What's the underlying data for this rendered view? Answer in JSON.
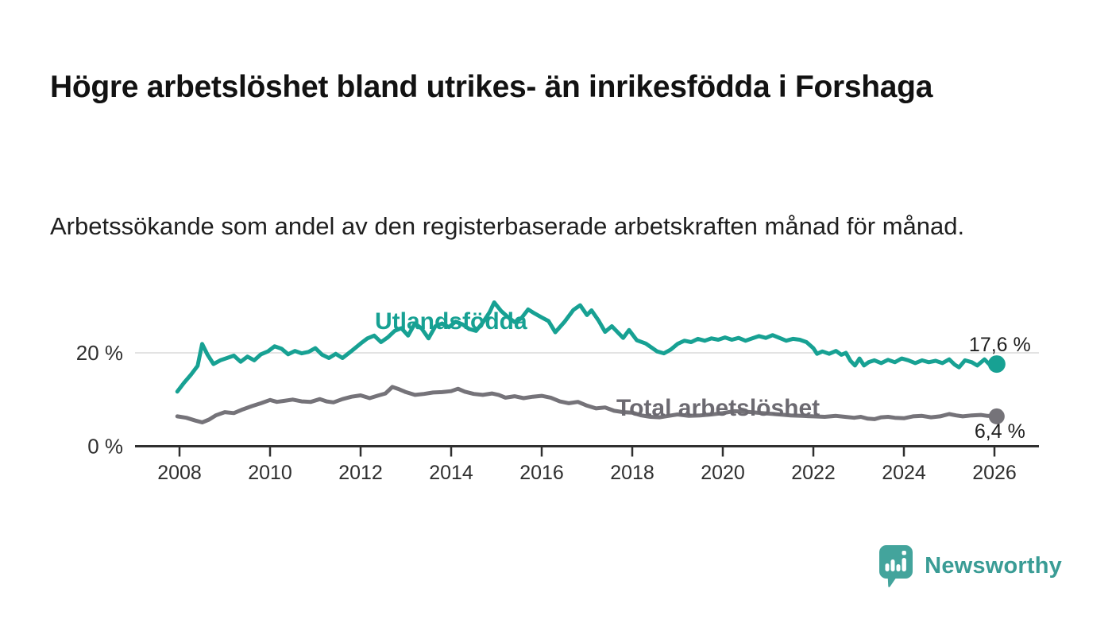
{
  "header": {
    "title": "Högre arbetslöshet bland utrikes- än inrikesfödda i Forshaga",
    "subtitle": "Arbetssökande som andel av den registerbaserade arbetskraften månad för månad."
  },
  "chart_data": {
    "type": "line",
    "title": "Högre arbetslöshet bland utrikes- än inrikesfödda i Forshaga",
    "xlabel": "",
    "ylabel": "",
    "x_ticks": [
      2008,
      2010,
      2012,
      2014,
      2016,
      2018,
      2020,
      2022,
      2024,
      2026
    ],
    "y_ticks": [
      {
        "value": 20,
        "label": "20 %",
        "gridline": true
      },
      {
        "value": 0,
        "label": "0 %",
        "gridline": false
      }
    ],
    "x_range": [
      2007.9,
      2027.0
    ],
    "y_range": [
      0,
      34
    ],
    "legend_position": "inline",
    "grid": "single-horizontal-at-20",
    "axis_color": "#2f2f2f",
    "grid_color": "#dadada",
    "tick_label_color": "#2f2f2f",
    "end_label_color": "#1f1f1f",
    "series": [
      {
        "name": "Utlandsfödda",
        "color": "#17A193",
        "label_color": "#17A193",
        "end_label": "17,6 %",
        "end_value": 17.6,
        "points": [
          [
            2007.95,
            11.7
          ],
          [
            2008.1,
            13.6
          ],
          [
            2008.25,
            15.3
          ],
          [
            2008.4,
            17.2
          ],
          [
            2008.5,
            21.9
          ],
          [
            2008.62,
            19.6
          ],
          [
            2008.75,
            17.6
          ],
          [
            2008.9,
            18.4
          ],
          [
            2009.05,
            18.9
          ],
          [
            2009.2,
            19.4
          ],
          [
            2009.35,
            18.1
          ],
          [
            2009.5,
            19.2
          ],
          [
            2009.65,
            18.4
          ],
          [
            2009.8,
            19.7
          ],
          [
            2009.95,
            20.3
          ],
          [
            2010.1,
            21.4
          ],
          [
            2010.25,
            20.9
          ],
          [
            2010.4,
            19.7
          ],
          [
            2010.55,
            20.4
          ],
          [
            2010.7,
            19.9
          ],
          [
            2010.85,
            20.2
          ],
          [
            2011.0,
            21.0
          ],
          [
            2011.15,
            19.6
          ],
          [
            2011.3,
            18.9
          ],
          [
            2011.45,
            19.8
          ],
          [
            2011.6,
            18.9
          ],
          [
            2011.8,
            20.4
          ],
          [
            2012.0,
            22.0
          ],
          [
            2012.15,
            23.1
          ],
          [
            2012.3,
            23.7
          ],
          [
            2012.45,
            22.3
          ],
          [
            2012.6,
            23.3
          ],
          [
            2012.75,
            24.7
          ],
          [
            2012.9,
            25.3
          ],
          [
            2013.05,
            23.7
          ],
          [
            2013.2,
            26.3
          ],
          [
            2013.35,
            25.2
          ],
          [
            2013.5,
            23.1
          ],
          [
            2013.65,
            25.7
          ],
          [
            2013.8,
            26.3
          ],
          [
            2013.95,
            25.5
          ],
          [
            2014.1,
            26.7
          ],
          [
            2014.25,
            26.1
          ],
          [
            2014.4,
            25.1
          ],
          [
            2014.55,
            24.7
          ],
          [
            2014.7,
            26.5
          ],
          [
            2014.85,
            28.7
          ],
          [
            2014.95,
            30.8
          ],
          [
            2015.1,
            29.0
          ],
          [
            2015.25,
            27.7
          ],
          [
            2015.4,
            26.6
          ],
          [
            2015.55,
            27.4
          ],
          [
            2015.7,
            29.3
          ],
          [
            2015.85,
            28.4
          ],
          [
            2016.0,
            27.6
          ],
          [
            2016.15,
            26.8
          ],
          [
            2016.3,
            24.4
          ],
          [
            2016.5,
            26.6
          ],
          [
            2016.7,
            29.2
          ],
          [
            2016.85,
            30.2
          ],
          [
            2017.0,
            28.1
          ],
          [
            2017.1,
            29.1
          ],
          [
            2017.25,
            27.0
          ],
          [
            2017.4,
            24.5
          ],
          [
            2017.55,
            25.7
          ],
          [
            2017.8,
            23.2
          ],
          [
            2017.93,
            24.9
          ],
          [
            2018.1,
            22.7
          ],
          [
            2018.3,
            22.0
          ],
          [
            2018.55,
            20.3
          ],
          [
            2018.7,
            19.9
          ],
          [
            2018.85,
            20.7
          ],
          [
            2019.0,
            21.9
          ],
          [
            2019.15,
            22.6
          ],
          [
            2019.3,
            22.3
          ],
          [
            2019.45,
            23.0
          ],
          [
            2019.6,
            22.6
          ],
          [
            2019.75,
            23.1
          ],
          [
            2019.9,
            22.8
          ],
          [
            2020.05,
            23.3
          ],
          [
            2020.2,
            22.8
          ],
          [
            2020.35,
            23.2
          ],
          [
            2020.5,
            22.6
          ],
          [
            2020.65,
            23.1
          ],
          [
            2020.8,
            23.6
          ],
          [
            2020.95,
            23.2
          ],
          [
            2021.1,
            23.8
          ],
          [
            2021.25,
            23.2
          ],
          [
            2021.4,
            22.6
          ],
          [
            2021.55,
            23.0
          ],
          [
            2021.7,
            22.8
          ],
          [
            2021.85,
            22.3
          ],
          [
            2022.0,
            21.0
          ],
          [
            2022.08,
            19.8
          ],
          [
            2022.2,
            20.3
          ],
          [
            2022.35,
            19.8
          ],
          [
            2022.5,
            20.4
          ],
          [
            2022.62,
            19.6
          ],
          [
            2022.72,
            20.0
          ],
          [
            2022.82,
            18.3
          ],
          [
            2022.92,
            17.3
          ],
          [
            2023.02,
            18.8
          ],
          [
            2023.12,
            17.3
          ],
          [
            2023.22,
            18.0
          ],
          [
            2023.35,
            18.4
          ],
          [
            2023.5,
            17.8
          ],
          [
            2023.65,
            18.5
          ],
          [
            2023.8,
            18.0
          ],
          [
            2023.95,
            18.8
          ],
          [
            2024.1,
            18.4
          ],
          [
            2024.25,
            17.8
          ],
          [
            2024.4,
            18.4
          ],
          [
            2024.55,
            18.0
          ],
          [
            2024.7,
            18.3
          ],
          [
            2024.85,
            17.8
          ],
          [
            2025.0,
            18.6
          ],
          [
            2025.12,
            17.5
          ],
          [
            2025.22,
            16.9
          ],
          [
            2025.35,
            18.4
          ],
          [
            2025.5,
            18.0
          ],
          [
            2025.62,
            17.3
          ],
          [
            2025.78,
            18.6
          ],
          [
            2025.92,
            17.2
          ],
          [
            2026.05,
            17.6
          ]
        ]
      },
      {
        "name": "Total arbetslöshet",
        "color": "#757379",
        "label_color": "#6C6A71",
        "end_label": "6,4 %",
        "end_value": 6.4,
        "points": [
          [
            2007.95,
            6.4
          ],
          [
            2008.15,
            6.1
          ],
          [
            2008.35,
            5.5
          ],
          [
            2008.5,
            5.1
          ],
          [
            2008.65,
            5.7
          ],
          [
            2008.8,
            6.6
          ],
          [
            2009.0,
            7.3
          ],
          [
            2009.2,
            7.1
          ],
          [
            2009.4,
            7.9
          ],
          [
            2009.6,
            8.6
          ],
          [
            2009.8,
            9.2
          ],
          [
            2010.0,
            9.9
          ],
          [
            2010.15,
            9.5
          ],
          [
            2010.3,
            9.7
          ],
          [
            2010.5,
            10.0
          ],
          [
            2010.7,
            9.6
          ],
          [
            2010.9,
            9.5
          ],
          [
            2011.1,
            10.1
          ],
          [
            2011.25,
            9.6
          ],
          [
            2011.4,
            9.4
          ],
          [
            2011.6,
            10.1
          ],
          [
            2011.8,
            10.6
          ],
          [
            2012.0,
            10.9
          ],
          [
            2012.2,
            10.3
          ],
          [
            2012.4,
            10.9
          ],
          [
            2012.55,
            11.3
          ],
          [
            2012.7,
            12.7
          ],
          [
            2012.85,
            12.2
          ],
          [
            2013.0,
            11.6
          ],
          [
            2013.2,
            11.0
          ],
          [
            2013.4,
            11.2
          ],
          [
            2013.6,
            11.5
          ],
          [
            2013.8,
            11.6
          ],
          [
            2014.0,
            11.8
          ],
          [
            2014.15,
            12.3
          ],
          [
            2014.3,
            11.7
          ],
          [
            2014.5,
            11.2
          ],
          [
            2014.7,
            11.0
          ],
          [
            2014.9,
            11.3
          ],
          [
            2015.05,
            11.0
          ],
          [
            2015.2,
            10.4
          ],
          [
            2015.4,
            10.7
          ],
          [
            2015.6,
            10.3
          ],
          [
            2015.8,
            10.6
          ],
          [
            2016.0,
            10.8
          ],
          [
            2016.2,
            10.4
          ],
          [
            2016.4,
            9.6
          ],
          [
            2016.6,
            9.2
          ],
          [
            2016.8,
            9.5
          ],
          [
            2017.0,
            8.7
          ],
          [
            2017.2,
            8.1
          ],
          [
            2017.4,
            8.3
          ],
          [
            2017.6,
            7.6
          ],
          [
            2017.8,
            7.3
          ],
          [
            2018.0,
            7.2
          ],
          [
            2018.2,
            6.6
          ],
          [
            2018.4,
            6.3
          ],
          [
            2018.6,
            6.2
          ],
          [
            2018.8,
            6.5
          ],
          [
            2019.0,
            6.8
          ],
          [
            2019.25,
            6.5
          ],
          [
            2019.5,
            6.6
          ],
          [
            2019.75,
            6.8
          ],
          [
            2020.0,
            7.1
          ],
          [
            2020.25,
            7.5
          ],
          [
            2020.5,
            7.4
          ],
          [
            2020.75,
            7.2
          ],
          [
            2021.0,
            7.0
          ],
          [
            2021.25,
            6.8
          ],
          [
            2021.5,
            6.6
          ],
          [
            2021.75,
            6.5
          ],
          [
            2022.0,
            6.4
          ],
          [
            2022.25,
            6.3
          ],
          [
            2022.5,
            6.5
          ],
          [
            2022.7,
            6.3
          ],
          [
            2022.9,
            6.1
          ],
          [
            2023.05,
            6.3
          ],
          [
            2023.2,
            5.9
          ],
          [
            2023.35,
            5.8
          ],
          [
            2023.5,
            6.2
          ],
          [
            2023.65,
            6.3
          ],
          [
            2023.8,
            6.1
          ],
          [
            2024.0,
            6.0
          ],
          [
            2024.2,
            6.4
          ],
          [
            2024.4,
            6.5
          ],
          [
            2024.6,
            6.2
          ],
          [
            2024.8,
            6.4
          ],
          [
            2025.0,
            6.9
          ],
          [
            2025.15,
            6.6
          ],
          [
            2025.3,
            6.4
          ],
          [
            2025.5,
            6.6
          ],
          [
            2025.7,
            6.7
          ],
          [
            2025.85,
            6.5
          ],
          [
            2026.05,
            6.4
          ]
        ]
      }
    ]
  },
  "footer": {
    "brand": "Newsworthy",
    "brand_color": "#3A9C95",
    "icon_color": "#43A49C",
    "icon_name": "newsworthy-speech-bubble-barchart-icon"
  }
}
